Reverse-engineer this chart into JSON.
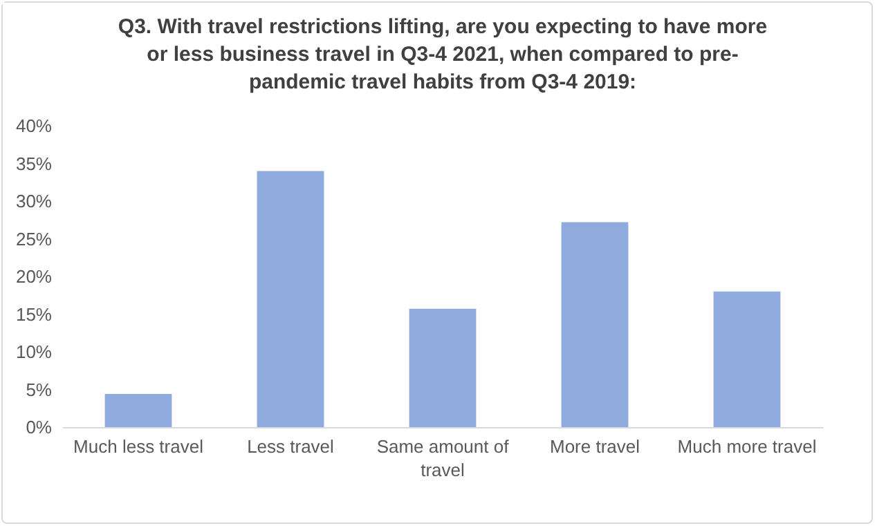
{
  "chart_data": {
    "type": "bar",
    "title": "Q3. With travel restrictions lifting, are you expecting to have more or less business travel in Q3-4 2021, when compared to pre-pandemic travel habits from Q3-4 2019:",
    "categories": [
      "Much less travel",
      "Less travel",
      "Same amount of travel",
      "More travel",
      "Much more travel"
    ],
    "values": [
      4.4,
      34.0,
      15.7,
      27.2,
      18.0
    ],
    "color": "#8faadc",
    "ylim": [
      0,
      40
    ],
    "yticks": [
      {
        "value": 0,
        "label": "0%"
      },
      {
        "value": 5,
        "label": "5%"
      },
      {
        "value": 10,
        "label": "10%"
      },
      {
        "value": 15,
        "label": "15%"
      },
      {
        "value": 20,
        "label": "20%"
      },
      {
        "value": 25,
        "label": "25%"
      },
      {
        "value": 30,
        "label": "30%"
      },
      {
        "value": 35,
        "label": "35%"
      },
      {
        "value": 40,
        "label": "40%"
      }
    ],
    "grid": false
  }
}
